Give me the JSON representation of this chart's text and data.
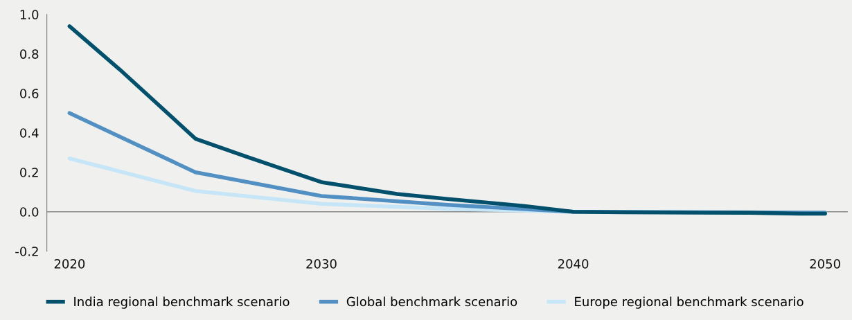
{
  "chart_data": {
    "type": "line",
    "xlim": [
      2019.1,
      2050.9
    ],
    "xticks": [
      2020,
      2030,
      2040,
      2050
    ],
    "ylim": [
      -0.2,
      1.0
    ],
    "yticks": [
      {
        "value": -0.2,
        "label": "-0.2"
      },
      {
        "value": 0.0,
        "label": "0.0"
      },
      {
        "value": 0.2,
        "label": "0.2"
      },
      {
        "value": 0.4,
        "label": "0.4"
      },
      {
        "value": 0.6,
        "label": "0.6"
      },
      {
        "value": 0.8,
        "label": "0.8"
      },
      {
        "value": 1.0,
        "label": "1.0"
      }
    ],
    "ref_lines": [
      {
        "axis": "y",
        "value": 0,
        "color": "#888888"
      }
    ],
    "grid": false,
    "legend": "bottom",
    "marker": "none",
    "line_style": "solid",
    "series": [
      {
        "name": "India regional benchmark scenario",
        "color": "#02506b",
        "x": [
          2020,
          2022,
          2025,
          2027,
          2030,
          2033,
          2035,
          2038,
          2040,
          2042,
          2047,
          2049,
          2050
        ],
        "values": [
          0.94,
          0.72,
          0.37,
          0.28,
          0.15,
          0.09,
          0.065,
          0.03,
          0.0,
          -0.003,
          -0.005,
          -0.01,
          -0.01
        ]
      },
      {
        "name": "Global benchmark scenario",
        "color": "#5290c4",
        "x": [
          2020,
          2025,
          2030,
          2035,
          2040,
          2050
        ],
        "values": [
          0.5,
          0.2,
          0.08,
          0.035,
          0.0,
          -0.005
        ]
      },
      {
        "name": "Europe regional benchmark scenario",
        "color": "#c6e6f8",
        "x": [
          2020,
          2025,
          2030,
          2035,
          2040,
          2050
        ],
        "values": [
          0.27,
          0.105,
          0.04,
          0.015,
          0.0,
          -0.005
        ]
      }
    ]
  }
}
